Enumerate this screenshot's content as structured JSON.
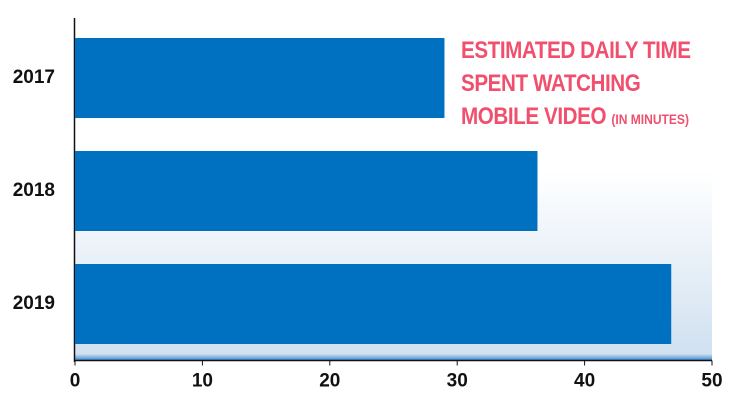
{
  "chart_data": {
    "type": "bar",
    "orientation": "horizontal",
    "title": "ESTIMATED DAILY TIME SPENT WATCHING MOBILE VIDEO",
    "subtitle": "(IN MINUTES)",
    "categories": [
      "2017",
      "2018",
      "2019"
    ],
    "values": [
      29.0,
      36.3,
      46.8
    ],
    "color": "#0070c0",
    "title_color": "#f0506e",
    "xlim": [
      0,
      50
    ],
    "xticks": [
      0,
      10,
      20,
      30,
      40,
      50
    ]
  }
}
